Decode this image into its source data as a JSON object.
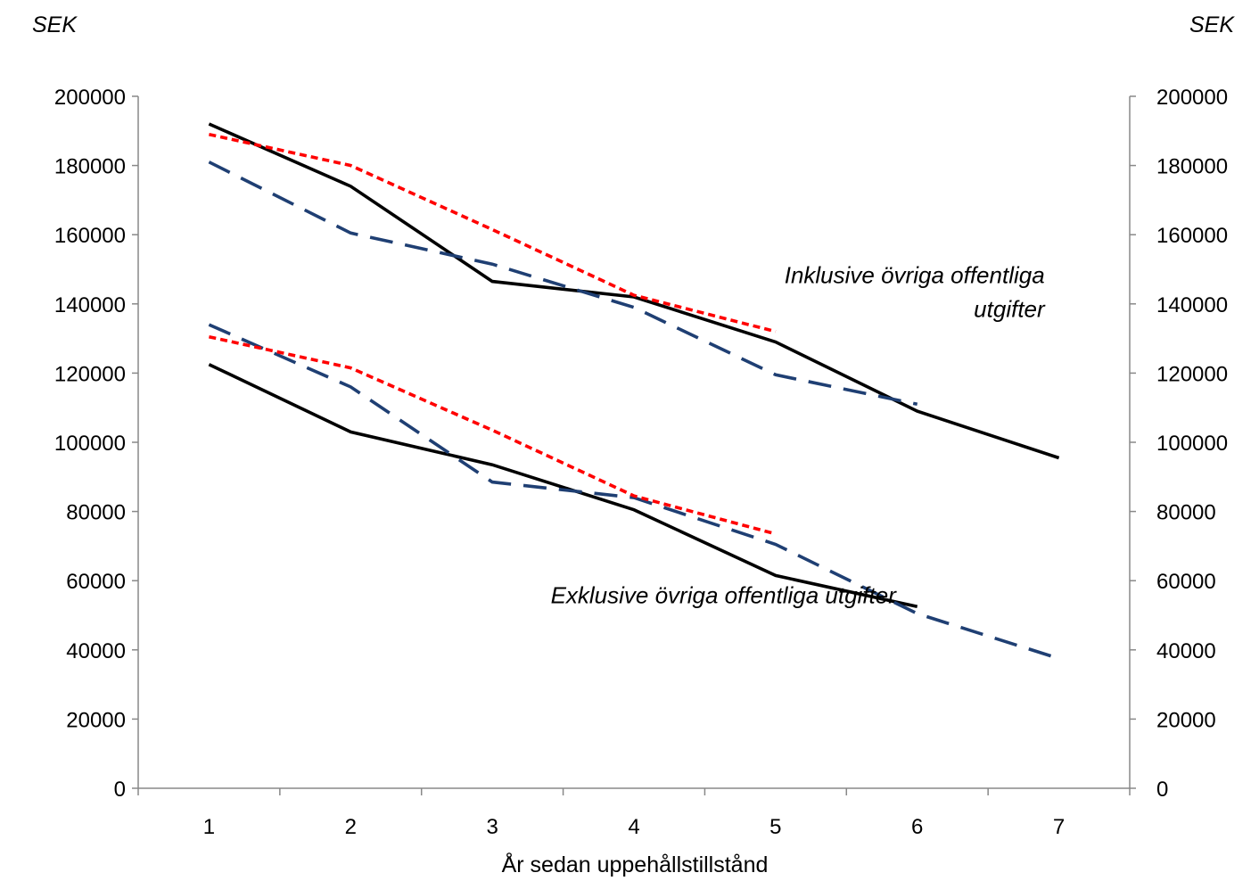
{
  "chart_data": {
    "type": "line",
    "y_unit_left": "SEK",
    "y_unit_right": "SEK",
    "xlabel": "År sedan uppehållstillstånd",
    "xlim": [
      0.5,
      7.5
    ],
    "ylim": [
      0,
      200000
    ],
    "x_ticks": [
      1,
      2,
      3,
      4,
      5,
      6,
      7
    ],
    "y_ticks": [
      0,
      20000,
      40000,
      60000,
      80000,
      100000,
      120000,
      140000,
      160000,
      180000,
      200000
    ],
    "grid": false,
    "legend": "none",
    "annotations": [
      {
        "lines": [
          "Inklusive övriga offentliga",
          "utgifter"
        ],
        "x": 6.9,
        "y": 146000,
        "anchor": "end"
      },
      {
        "lines": [
          "Exklusive övriga offentliga utgifter"
        ],
        "x": 5.85,
        "y": 53500,
        "anchor": "end"
      }
    ],
    "series": [
      {
        "group": "incl",
        "style": "solid",
        "color": "#000000",
        "x": [
          1,
          2,
          3,
          4,
          5,
          6,
          7
        ],
        "values": [
          192000,
          174000,
          146500,
          142000,
          129000,
          109000,
          95500
        ]
      },
      {
        "group": "incl",
        "style": "long-dash",
        "color": "#1f3f73",
        "x": [
          1,
          2,
          3,
          4,
          5,
          6
        ],
        "values": [
          181000,
          160500,
          151500,
          139000,
          119500,
          111000
        ]
      },
      {
        "group": "incl",
        "style": "short-dash",
        "color": "#ff0000",
        "x": [
          1,
          2,
          3,
          4,
          5
        ],
        "values": [
          189000,
          180000,
          161500,
          142500,
          132000
        ]
      },
      {
        "group": "excl",
        "style": "solid",
        "color": "#000000",
        "x": [
          1,
          2,
          3,
          4,
          5,
          6
        ],
        "values": [
          122500,
          103000,
          93500,
          80500,
          61500,
          52500
        ]
      },
      {
        "group": "excl",
        "style": "long-dash",
        "color": "#1f3f73",
        "x": [
          1,
          2,
          3,
          4,
          5,
          6,
          7
        ],
        "values": [
          134000,
          116000,
          88500,
          84000,
          70500,
          50500,
          37500
        ]
      },
      {
        "group": "excl",
        "style": "short-dash",
        "color": "#ff0000",
        "x": [
          1,
          2,
          3,
          4,
          5
        ],
        "values": [
          130500,
          121500,
          103500,
          84500,
          73500
        ]
      }
    ]
  }
}
